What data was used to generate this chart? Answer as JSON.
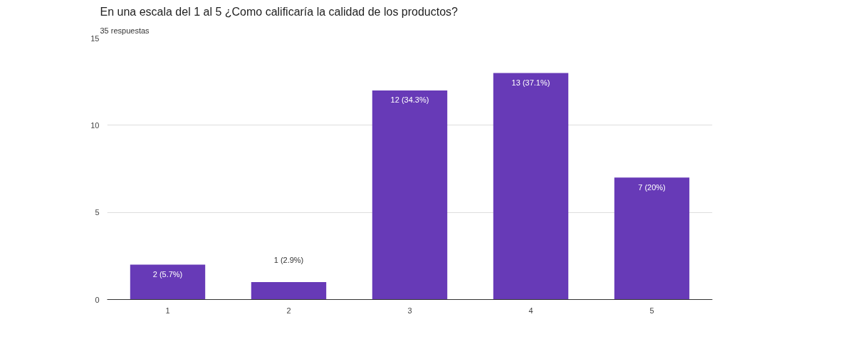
{
  "chart_data": {
    "type": "bar",
    "title": "En una escala del 1 al 5 ¿Como calificaría la calidad de los productos?",
    "subtitle": "35 respuestas",
    "categories": [
      "1",
      "2",
      "3",
      "4",
      "5"
    ],
    "values": [
      2,
      1,
      12,
      13,
      7
    ],
    "value_labels": [
      "2 (5.7%)",
      "1 (2.9%)",
      "12 (34.3%)",
      "13 (37.1%)",
      "7 (20%)"
    ],
    "color": "#673ab7",
    "ylim": [
      0,
      15
    ],
    "yticks": [
      0,
      5,
      10,
      15
    ],
    "grid": "y"
  }
}
